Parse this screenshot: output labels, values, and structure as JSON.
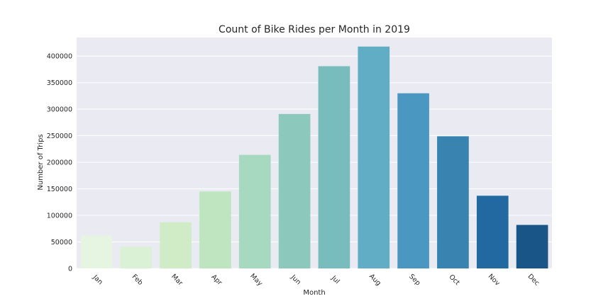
{
  "chart_data": {
    "type": "bar",
    "title": "Count of Bike Rides per Month in 2019",
    "xlabel": "Month",
    "ylabel": "Number of Trips",
    "categories": [
      "Jan",
      "Feb",
      "Mar",
      "Apr",
      "May",
      "Jun",
      "Jul",
      "Aug",
      "Sep",
      "Oct",
      "Nov",
      "Dec"
    ],
    "values": [
      62000,
      41000,
      87000,
      145000,
      214000,
      291000,
      381000,
      418000,
      330000,
      249000,
      137000,
      82000
    ],
    "ylim": [
      0,
      435000
    ],
    "yticks": [
      0,
      50000,
      100000,
      150000,
      200000,
      250000,
      300000,
      350000,
      400000
    ],
    "ytick_labels": [
      "0",
      "50000",
      "100000",
      "150000",
      "200000",
      "250000",
      "300000",
      "350000",
      "400000"
    ],
    "grid": true,
    "colors": [
      "#e6f5e1",
      "#dbf1d6",
      "#d0ecc6",
      "#bee5bf",
      "#a6d9bf",
      "#8dc8bd",
      "#78bcbe",
      "#60adc5",
      "#4a98c2",
      "#3883b0",
      "#2369a1",
      "#1a5588"
    ]
  }
}
